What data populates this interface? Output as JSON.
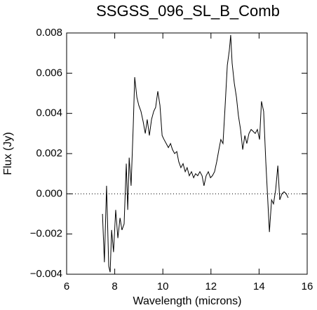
{
  "chart_data": {
    "type": "line",
    "title": "SSGSS_096_SL_B_Comb",
    "x_label": "Wavelength (microns)",
    "y_label": "Flux (Jy)",
    "color": "#000000",
    "zero_line": true,
    "xlim": [
      6,
      16
    ],
    "xticks": [
      6,
      8,
      10,
      12,
      14,
      16
    ],
    "ylim": [
      -0.004,
      0.008
    ],
    "yticks": [
      {
        "value": -0.004,
        "label": "−0.004"
      },
      {
        "value": -0.002,
        "label": "−0.002"
      },
      {
        "value": 0,
        "label": "0.000"
      },
      0.002,
      0.004,
      0.006,
      0.008
    ],
    "x": [
      7.49,
      7.57,
      7.66,
      7.75,
      7.81,
      7.87,
      7.95,
      8.04,
      8.13,
      8.22,
      8.3,
      8.39,
      8.48,
      8.54,
      8.6,
      8.68,
      8.77,
      8.83,
      8.92,
      9.0,
      9.09,
      9.18,
      9.27,
      9.35,
      9.44,
      9.53,
      9.62,
      9.7,
      9.79,
      9.88,
      9.97,
      10.05,
      10.14,
      10.23,
      10.32,
      10.4,
      10.49,
      10.58,
      10.66,
      10.75,
      10.84,
      10.93,
      11.01,
      11.1,
      11.19,
      11.28,
      11.36,
      11.45,
      11.54,
      11.63,
      11.71,
      11.8,
      11.89,
      11.98,
      12.06,
      12.15,
      12.24,
      12.33,
      12.41,
      12.5,
      12.59,
      12.68,
      12.76,
      12.82,
      12.88,
      12.97,
      13.06,
      13.14,
      13.23,
      13.32,
      13.41,
      13.49,
      13.58,
      13.67,
      13.76,
      13.84,
      13.93,
      14.02,
      14.1,
      14.19,
      14.28,
      14.37,
      14.43,
      14.52,
      14.6,
      14.69,
      14.78,
      14.86,
      14.95,
      15.04,
      15.13,
      15.21
    ],
    "values": [
      -0.001,
      -0.0034,
      0.0004,
      -0.0036,
      -0.0039,
      -0.0018,
      -0.0029,
      -0.0008,
      -0.0022,
      -0.0012,
      -0.0018,
      -0.0015,
      0.0015,
      -0.0008,
      0.0018,
      0.0004,
      0.0034,
      0.0058,
      0.0048,
      0.0044,
      0.0041,
      0.0036,
      0.003,
      0.0037,
      0.0029,
      0.0037,
      0.0041,
      0.0043,
      0.0051,
      0.0044,
      0.0029,
      0.0027,
      0.0025,
      0.0023,
      0.0025,
      0.0022,
      0.002,
      0.0021,
      0.0016,
      0.0013,
      0.0015,
      0.0011,
      0.0013,
      0.0009,
      0.0011,
      0.0008,
      0.001,
      0.0009,
      0.0011,
      0.0009,
      0.0004,
      0.0009,
      0.0011,
      0.0008,
      0.0009,
      0.0011,
      0.0016,
      0.0022,
      0.0027,
      0.0025,
      0.0044,
      0.0064,
      0.0071,
      0.0079,
      0.0065,
      0.0055,
      0.0048,
      0.0039,
      0.0032,
      0.0022,
      0.0029,
      0.0025,
      0.003,
      0.0032,
      0.0031,
      0.003,
      0.0032,
      0.0027,
      0.0046,
      0.0041,
      0.0016,
      -0.0005,
      -0.0019,
      -0.0003,
      -0.0005,
      0.0002,
      0.0014,
      -0.0003,
      0,
      0.0001,
      0,
      -0.0002
    ]
  }
}
